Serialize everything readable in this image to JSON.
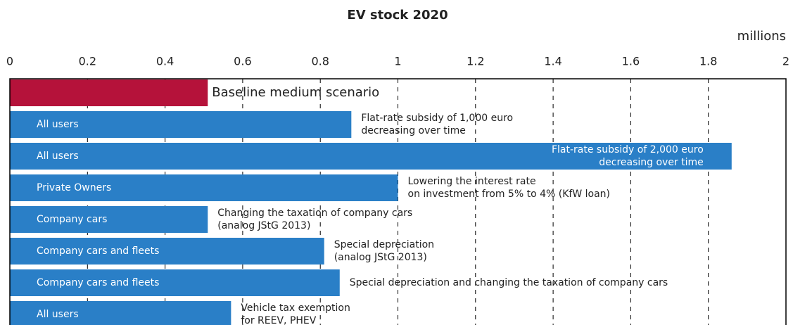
{
  "chart_data": {
    "type": "barh",
    "title": "EV stock 2020",
    "x_unit": "millions",
    "categories": [
      null,
      "All users",
      "All users",
      "Private Owners",
      "Company cars",
      "Company cars and fleets",
      "Company cars and fleets",
      "All users"
    ],
    "values": [
      0.51,
      0.88,
      1.86,
      1.0,
      0.51,
      0.81,
      0.85,
      0.57
    ],
    "colors": [
      "#b5123a",
      "#2a7fc7",
      "#2a7fc7",
      "#2a7fc7",
      "#2a7fc7",
      "#2a7fc7",
      "#2a7fc7",
      "#2a7fc7"
    ],
    "annotations": [
      [
        "Baseline medium scenario"
      ],
      [
        "Flat-rate subsidy of 1,000 euro",
        "decreasing over time"
      ],
      [
        "Flat-rate subsidy of 2,000 euro",
        "decreasing over time"
      ],
      [
        "Lowering the interest rate",
        "on investment from 5% to 4% (KfW loan)"
      ],
      [
        "Changing the taxation of company cars",
        "(analog JStG 2013)"
      ],
      [
        "Special depreciation",
        "(analog JStG 2013)"
      ],
      [
        "Special depreciation and changing the taxation of company cars"
      ],
      [
        "Vehicle tax exemption",
        "for REEV, PHEV"
      ]
    ],
    "xlim": [
      0,
      2
    ],
    "xticks": [
      0,
      0.2,
      0.4,
      0.6,
      0.8,
      1,
      1.2,
      1.4,
      1.6,
      1.8,
      2
    ],
    "grid": true
  }
}
